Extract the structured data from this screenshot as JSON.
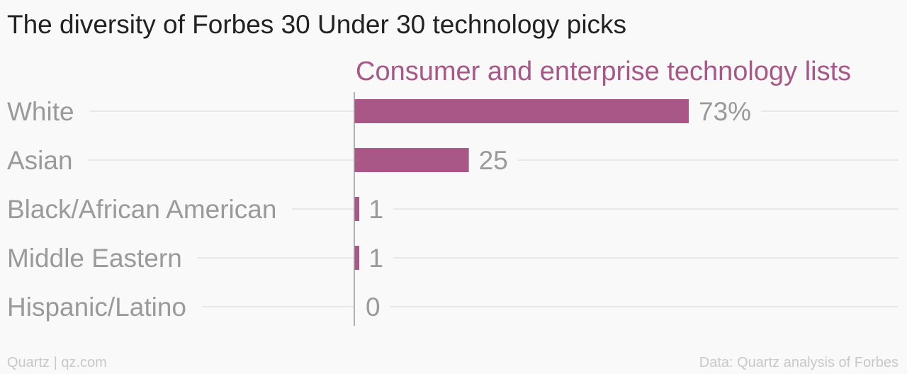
{
  "title": "The diversity of Forbes 30 Under 30 technology picks",
  "footer": {
    "source_left": "Quartz | qz.com",
    "source_right": "Data: Quartz analysis of Forbes"
  },
  "colors": {
    "bar": "#a85786",
    "series_label": "#a85786",
    "gridline": "#e8e8e8",
    "axis": "#999999"
  },
  "chart_data": {
    "type": "bar",
    "orientation": "horizontal",
    "title": "The diversity of Forbes 30 Under 30 technology picks",
    "categories": [
      "White",
      "Asian",
      "Black/African American",
      "Middle Eastern",
      "Hispanic/Latino"
    ],
    "series": [
      {
        "name": "Consumer and enterprise technology lists",
        "values": [
          73,
          25,
          1,
          1,
          0
        ]
      }
    ],
    "value_labels": [
      "73%",
      "25",
      "1",
      "1",
      "0"
    ],
    "xlim": [
      0,
      100
    ],
    "unit": "%",
    "grid": true,
    "legend": "top"
  }
}
